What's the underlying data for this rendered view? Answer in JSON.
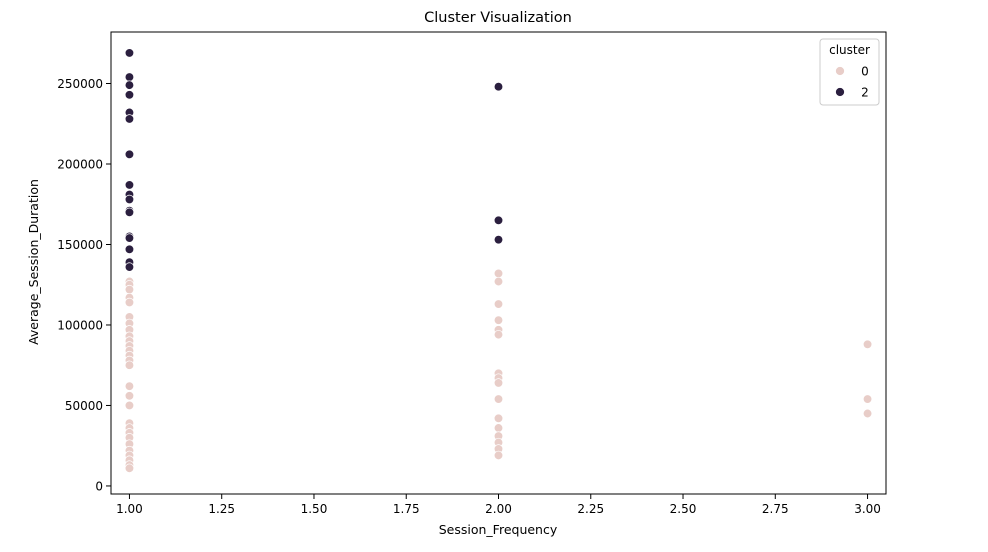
{
  "chart_data": {
    "type": "scatter",
    "title": "Cluster Visualization",
    "xlabel": "Session_Frequency",
    "ylabel": "Average_Session_Duration",
    "xlim": [
      0.95,
      3.05
    ],
    "ylim": [
      -5000,
      282000
    ],
    "x_ticks": [
      1.0,
      1.25,
      1.5,
      1.75,
      2.0,
      2.25,
      2.5,
      2.75,
      3.0
    ],
    "x_tick_labels": [
      "1.00",
      "1.25",
      "1.50",
      "1.75",
      "2.00",
      "2.25",
      "2.50",
      "2.75",
      "3.00"
    ],
    "y_ticks": [
      0,
      50000,
      100000,
      150000,
      200000,
      250000
    ],
    "y_tick_labels": [
      "0",
      "50000",
      "100000",
      "150000",
      "200000",
      "250000"
    ],
    "grid": false,
    "legend": {
      "title": "cluster",
      "placement": "top-right",
      "entries": [
        {
          "label": "0",
          "color": "#e8cdc8"
        },
        {
          "label": "2",
          "color": "#2b1f3f"
        }
      ]
    },
    "series": [
      {
        "name": "0",
        "color": "#e8cdc8",
        "points": [
          [
            1.0,
            127000
          ],
          [
            1.0,
            125000
          ],
          [
            1.0,
            122000
          ],
          [
            1.0,
            117000
          ],
          [
            1.0,
            114000
          ],
          [
            1.0,
            105000
          ],
          [
            1.0,
            101000
          ],
          [
            1.0,
            97000
          ],
          [
            1.0,
            93000
          ],
          [
            1.0,
            90000
          ],
          [
            1.0,
            87000
          ],
          [
            1.0,
            84000
          ],
          [
            1.0,
            81000
          ],
          [
            1.0,
            78000
          ],
          [
            1.0,
            75000
          ],
          [
            1.0,
            62000
          ],
          [
            1.0,
            56000
          ],
          [
            1.0,
            50000
          ],
          [
            1.0,
            39000
          ],
          [
            1.0,
            36000
          ],
          [
            1.0,
            33000
          ],
          [
            1.0,
            30000
          ],
          [
            1.0,
            26000
          ],
          [
            1.0,
            22000
          ],
          [
            1.0,
            19000
          ],
          [
            1.0,
            16000
          ],
          [
            1.0,
            13000
          ],
          [
            1.0,
            11000
          ],
          [
            2.0,
            132000
          ],
          [
            2.0,
            127000
          ],
          [
            2.0,
            113000
          ],
          [
            2.0,
            103000
          ],
          [
            2.0,
            97000
          ],
          [
            2.0,
            94000
          ],
          [
            2.0,
            70000
          ],
          [
            2.0,
            67000
          ],
          [
            2.0,
            64000
          ],
          [
            2.0,
            54000
          ],
          [
            2.0,
            42000
          ],
          [
            2.0,
            36000
          ],
          [
            2.0,
            31000
          ],
          [
            2.0,
            27000
          ],
          [
            2.0,
            23000
          ],
          [
            2.0,
            19000
          ],
          [
            3.0,
            88000
          ],
          [
            3.0,
            54000
          ],
          [
            3.0,
            45000
          ]
        ]
      },
      {
        "name": "2",
        "color": "#2b1f3f",
        "points": [
          [
            1.0,
            269000
          ],
          [
            1.0,
            254000
          ],
          [
            1.0,
            249000
          ],
          [
            1.0,
            243000
          ],
          [
            1.0,
            232000
          ],
          [
            1.0,
            228000
          ],
          [
            1.0,
            206000
          ],
          [
            1.0,
            187000
          ],
          [
            1.0,
            181000
          ],
          [
            1.0,
            178000
          ],
          [
            1.0,
            171000
          ],
          [
            1.0,
            170000
          ],
          [
            1.0,
            155000
          ],
          [
            1.0,
            154000
          ],
          [
            1.0,
            147000
          ],
          [
            1.0,
            139000
          ],
          [
            1.0,
            136000
          ],
          [
            2.0,
            248000
          ],
          [
            2.0,
            165000
          ],
          [
            2.0,
            153000
          ]
        ]
      }
    ]
  }
}
